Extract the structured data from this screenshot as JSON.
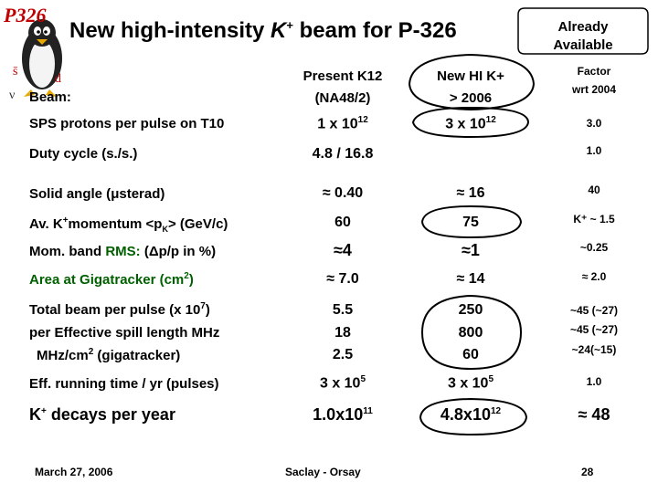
{
  "slide": {
    "logo_text": "P326",
    "title_prefix": "New high-intensity ",
    "title_k": "K",
    "title_sup": "+",
    "title_suffix": " beam for P-326",
    "callout_line1": "Already",
    "callout_line2": "Available"
  },
  "header": {
    "beam_label": "Beam:",
    "current_line1": "Present K12",
    "current_line2": "(NA48/2)",
    "new_line1": "New HI K+",
    "new_line2": "> 2006",
    "factor_line1": "Factor",
    "factor_line2": "wrt 2004"
  },
  "rows": {
    "protons": {
      "label": "SPS protons per pulse on T10",
      "cur_base": "1 x 10",
      "cur_exp": "12",
      "new_base": "3 x 10",
      "new_exp": "12",
      "factor": "3.0"
    },
    "duty": {
      "label": "Duty cycle (s./s.)",
      "cur": "4.8 / 16.8",
      "factor": "1.0"
    },
    "solid": {
      "label_pre": "Solid angle (",
      "label_mu": "μ",
      "label_post": "sterad)",
      "cur": "≈ 0.40",
      "new": "≈ 16",
      "factor": "40"
    },
    "momentum": {
      "label_pre": "Av. K",
      "label_sup": "+",
      "label_mid": "momentum <p",
      "label_sub": "K",
      "label_post": "> (GeV/c)",
      "cur": "60",
      "new": "75",
      "factor": "K⁺ ~ 1.5"
    },
    "band": {
      "label_pre": "Mom. band ",
      "label_rms": "RMS:",
      "label_post": " (Δp/p in %)",
      "cur": "≈4",
      "new": "≈1",
      "factor": "~0.25"
    },
    "area": {
      "label_pre": "Area at Gigatracker (cm",
      "label_sup": "2",
      "label_post": ")",
      "cur": "≈ 7.0",
      "new": "≈ 14",
      "factor": "≈ 2.0"
    },
    "total": {
      "label_pre": "Total beam per pulse (x 10",
      "label_sup": "7",
      "label_post": ")",
      "cur": "5.5",
      "new": "250",
      "factor": "~45 (~27)"
    },
    "spill": {
      "label": "per Effective spill length MHz",
      "cur": "18",
      "new": "800",
      "factor": "~45 (~27)"
    },
    "flux": {
      "label_pre": "MHz/cm",
      "label_sup": "2",
      "label_post": " (gigatracker)",
      "cur": "2.5",
      "new": "60",
      "factor": "~24(~15)"
    },
    "running": {
      "label": "Eff. running time / yr (pulses)",
      "cur_base": "3 x 10",
      "cur_exp": "5",
      "new_base": "3 x 10",
      "new_exp": "5",
      "factor": "1.0"
    },
    "decays": {
      "label_pre": "K",
      "label_sup": "+",
      "label_post": " decays per year",
      "cur_base": "1.0x10",
      "cur_exp": "11",
      "new_base": "4.8x10",
      "new_exp": "12",
      "factor": "≈ 48"
    }
  },
  "footer": {
    "date": "March 27, 2006",
    "venue": "Saclay - Orsay",
    "page": "28"
  },
  "colors": {
    "logo_red": "#c00000",
    "label_green": "#006000",
    "ink": "#000000"
  }
}
